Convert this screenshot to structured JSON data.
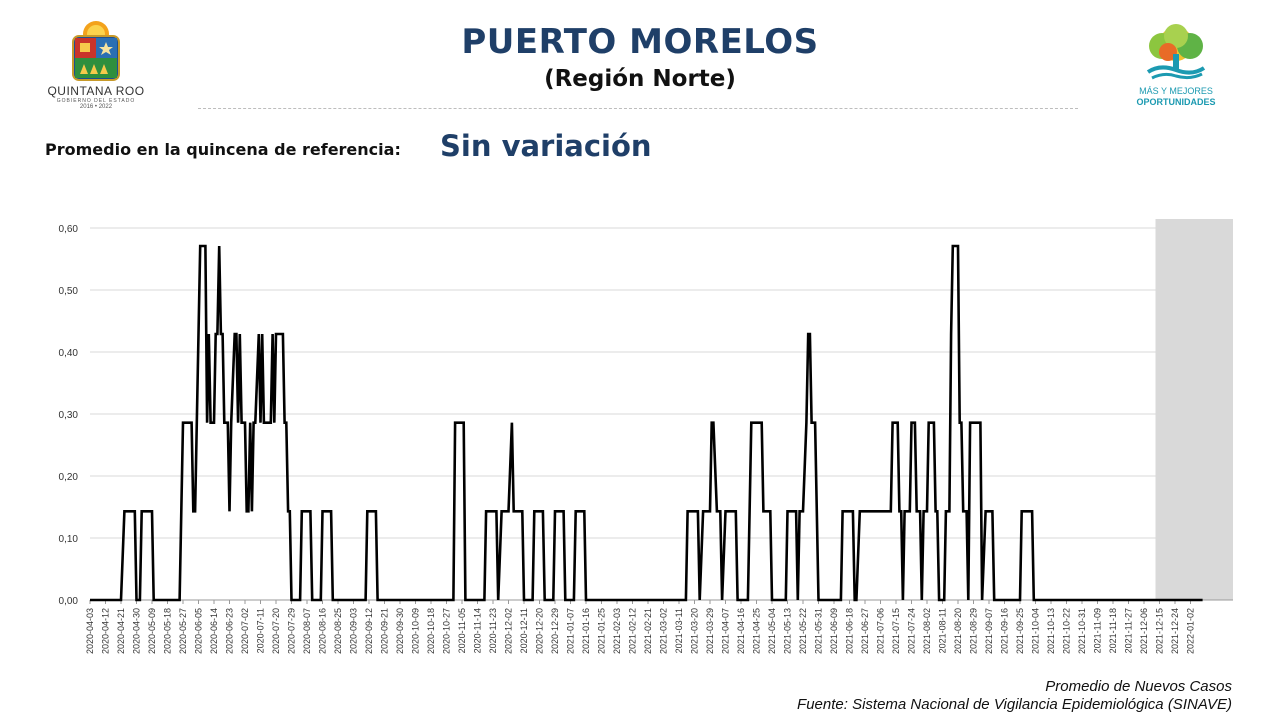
{
  "header": {
    "title": "PUERTO MORELOS",
    "subtitle": "(Región Norte)",
    "left_logo": {
      "name": "QUINTANA ROO",
      "sub": "GOBIERNO DEL ESTADO",
      "years": "2016 • 2022"
    },
    "right_logo": {
      "line1": "MÁS Y MEJORES",
      "line2": "OPORTUNIDADES"
    }
  },
  "reference": {
    "label": "Promedio en la quincena de referencia:",
    "value": "Sin variación"
  },
  "footer": {
    "legend": "Promedio de Nuevos Casos",
    "source": "Fuente: Sistema Nacional de Vigilancia Epidemiológica (SINAVE)"
  },
  "colors": {
    "title": "#1f3f68",
    "line": "#000000",
    "shade": "#d9d9d9",
    "grid": "#d9d9d9"
  },
  "chart_data": {
    "type": "line",
    "ylim": [
      0,
      0.6
    ],
    "yticks": [
      "0,00",
      "0,10",
      "0,20",
      "0,30",
      "0,40",
      "0,50",
      "0,60"
    ],
    "xticks": [
      "2020-04-03",
      "2020-04-12",
      "2020-04-21",
      "2020-04-30",
      "2020-05-09",
      "2020-05-18",
      "2020-05-27",
      "2020-06-05",
      "2020-06-14",
      "2020-06-23",
      "2020-07-02",
      "2020-07-11",
      "2020-07-20",
      "2020-07-29",
      "2020-08-07",
      "2020-08-16",
      "2020-08-25",
      "2020-09-03",
      "2020-09-12",
      "2020-09-21",
      "2020-09-30",
      "2020-10-09",
      "2020-10-18",
      "2020-10-27",
      "2020-11-05",
      "2020-11-14",
      "2020-11-23",
      "2020-12-02",
      "2020-12-11",
      "2020-12-20",
      "2020-12-29",
      "2021-01-07",
      "2021-01-16",
      "2021-01-25",
      "2021-02-03",
      "2021-02-12",
      "2021-02-21",
      "2021-03-02",
      "2021-03-11",
      "2021-03-20",
      "2021-03-29",
      "2021-04-07",
      "2021-04-16",
      "2021-04-25",
      "2021-05-04",
      "2021-05-13",
      "2021-05-22",
      "2021-05-31",
      "2021-06-09",
      "2021-06-18",
      "2021-06-27",
      "2021-07-06",
      "2021-07-15",
      "2021-07-24",
      "2021-08-02",
      "2021-08-11",
      "2021-08-20",
      "2021-08-29",
      "2021-09-07",
      "2021-09-16",
      "2021-09-25",
      "2021-10-04",
      "2021-10-13",
      "2021-10-22",
      "2021-10-31",
      "2021-11-09",
      "2021-11-18",
      "2021-11-27",
      "2021-12-06",
      "2021-12-15",
      "2021-12-24",
      "2022-01-02"
    ],
    "shaded_from": "2021-12-15",
    "points": [
      [
        "2020-04-03",
        0
      ],
      [
        "2020-04-21",
        0
      ],
      [
        "2020-04-23",
        0.143
      ],
      [
        "2020-04-29",
        0.143
      ],
      [
        "2020-04-30",
        0
      ],
      [
        "2020-05-02",
        0
      ],
      [
        "2020-05-03",
        0.143
      ],
      [
        "2020-05-09",
        0.143
      ],
      [
        "2020-05-10",
        0
      ],
      [
        "2020-05-25",
        0
      ],
      [
        "2020-05-27",
        0.286
      ],
      [
        "2020-06-01",
        0.286
      ],
      [
        "2020-06-02",
        0.143
      ],
      [
        "2020-06-03",
        0.143
      ],
      [
        "2020-06-05",
        0.429
      ],
      [
        "2020-06-06",
        0.571
      ],
      [
        "2020-06-09",
        0.571
      ],
      [
        "2020-06-10",
        0.286
      ],
      [
        "2020-06-11",
        0.429
      ],
      [
        "2020-06-12",
        0.286
      ],
      [
        "2020-06-14",
        0.286
      ],
      [
        "2020-06-15",
        0.429
      ],
      [
        "2020-06-16",
        0.429
      ],
      [
        "2020-06-17",
        0.571
      ],
      [
        "2020-06-18",
        0.429
      ],
      [
        "2020-06-19",
        0.429
      ],
      [
        "2020-06-20",
        0.286
      ],
      [
        "2020-06-22",
        0.286
      ],
      [
        "2020-06-23",
        0.143
      ],
      [
        "2020-06-24",
        0.286
      ],
      [
        "2020-06-26",
        0.429
      ],
      [
        "2020-06-27",
        0.429
      ],
      [
        "2020-06-28",
        0.286
      ],
      [
        "2020-06-29",
        0.429
      ],
      [
        "2020-06-30",
        0.286
      ],
      [
        "2020-07-02",
        0.286
      ],
      [
        "2020-07-03",
        0.143
      ],
      [
        "2020-07-04",
        0.143
      ],
      [
        "2020-07-05",
        0.286
      ],
      [
        "2020-07-06",
        0.143
      ],
      [
        "2020-07-07",
        0.286
      ],
      [
        "2020-07-08",
        0.286
      ],
      [
        "2020-07-10",
        0.429
      ],
      [
        "2020-07-11",
        0.286
      ],
      [
        "2020-07-12",
        0.429
      ],
      [
        "2020-07-13",
        0.286
      ],
      [
        "2020-07-17",
        0.286
      ],
      [
        "2020-07-18",
        0.429
      ],
      [
        "2020-07-19",
        0.286
      ],
      [
        "2020-07-20",
        0.429
      ],
      [
        "2020-07-24",
        0.429
      ],
      [
        "2020-07-25",
        0.286
      ],
      [
        "2020-07-26",
        0.286
      ],
      [
        "2020-07-27",
        0.143
      ],
      [
        "2020-07-28",
        0.143
      ],
      [
        "2020-07-29",
        0
      ],
      [
        "2020-08-03",
        0
      ],
      [
        "2020-08-04",
        0.143
      ],
      [
        "2020-08-09",
        0.143
      ],
      [
        "2020-08-10",
        0
      ],
      [
        "2020-08-15",
        0
      ],
      [
        "2020-08-16",
        0.143
      ],
      [
        "2020-08-21",
        0.143
      ],
      [
        "2020-08-22",
        0
      ],
      [
        "2020-09-10",
        0
      ],
      [
        "2020-09-11",
        0.143
      ],
      [
        "2020-09-16",
        0.143
      ],
      [
        "2020-09-17",
        0
      ],
      [
        "2020-10-31",
        0
      ],
      [
        "2020-11-01",
        0.286
      ],
      [
        "2020-11-06",
        0.286
      ],
      [
        "2020-11-07",
        0
      ],
      [
        "2020-11-18",
        0
      ],
      [
        "2020-11-19",
        0.143
      ],
      [
        "2020-11-25",
        0.143
      ],
      [
        "2020-11-26",
        0
      ],
      [
        "2020-11-28",
        0.143
      ],
      [
        "2020-12-02",
        0.143
      ],
      [
        "2020-12-04",
        0.286
      ],
      [
        "2020-12-05",
        0.143
      ],
      [
        "2020-12-10",
        0.143
      ],
      [
        "2020-12-11",
        0
      ],
      [
        "2020-12-16",
        0
      ],
      [
        "2020-12-17",
        0.143
      ],
      [
        "2020-12-22",
        0.143
      ],
      [
        "2020-12-23",
        0
      ],
      [
        "2020-12-28",
        0
      ],
      [
        "2020-12-29",
        0.143
      ],
      [
        "2021-01-03",
        0.143
      ],
      [
        "2021-01-04",
        0
      ],
      [
        "2021-01-09",
        0
      ],
      [
        "2021-01-10",
        0.143
      ],
      [
        "2021-01-15",
        0.143
      ],
      [
        "2021-01-16",
        0
      ],
      [
        "2021-03-15",
        0
      ],
      [
        "2021-03-16",
        0.143
      ],
      [
        "2021-03-22",
        0.143
      ],
      [
        "2021-03-23",
        0
      ],
      [
        "2021-03-25",
        0.143
      ],
      [
        "2021-03-29",
        0.143
      ],
      [
        "2021-03-30",
        0.286
      ],
      [
        "2021-03-31",
        0.286
      ],
      [
        "2021-04-02",
        0.143
      ],
      [
        "2021-04-04",
        0.143
      ],
      [
        "2021-04-05",
        0
      ],
      [
        "2021-04-07",
        0.143
      ],
      [
        "2021-04-13",
        0.143
      ],
      [
        "2021-04-14",
        0
      ],
      [
        "2021-04-20",
        0
      ],
      [
        "2021-04-21",
        0.143
      ],
      [
        "2021-04-22",
        0.286
      ],
      [
        "2021-04-28",
        0.286
      ],
      [
        "2021-04-29",
        0.143
      ],
      [
        "2021-05-03",
        0.143
      ],
      [
        "2021-05-04",
        0
      ],
      [
        "2021-05-12",
        0
      ],
      [
        "2021-05-13",
        0.143
      ],
      [
        "2021-05-18",
        0.143
      ],
      [
        "2021-05-19",
        0
      ],
      [
        "2021-05-20",
        0.143
      ],
      [
        "2021-05-22",
        0.143
      ],
      [
        "2021-05-24",
        0.286
      ],
      [
        "2021-05-25",
        0.429
      ],
      [
        "2021-05-26",
        0.429
      ],
      [
        "2021-05-27",
        0.286
      ],
      [
        "2021-05-29",
        0.286
      ],
      [
        "2021-05-30",
        0.143
      ],
      [
        "2021-05-31",
        0
      ],
      [
        "2021-06-13",
        0
      ],
      [
        "2021-06-14",
        0.143
      ],
      [
        "2021-06-20",
        0.143
      ],
      [
        "2021-06-21",
        0
      ],
      [
        "2021-06-22",
        0
      ],
      [
        "2021-06-24",
        0.143
      ],
      [
        "2021-07-12",
        0.143
      ],
      [
        "2021-07-13",
        0.286
      ],
      [
        "2021-07-16",
        0.286
      ],
      [
        "2021-07-17",
        0.143
      ],
      [
        "2021-07-18",
        0.143
      ],
      [
        "2021-07-19",
        0
      ],
      [
        "2021-07-20",
        0.143
      ],
      [
        "2021-07-23",
        0.143
      ],
      [
        "2021-07-24",
        0.286
      ],
      [
        "2021-07-26",
        0.286
      ],
      [
        "2021-07-27",
        0.143
      ],
      [
        "2021-07-29",
        0.143
      ],
      [
        "2021-07-30",
        0
      ],
      [
        "2021-07-31",
        0.143
      ],
      [
        "2021-08-02",
        0.143
      ],
      [
        "2021-08-03",
        0.286
      ],
      [
        "2021-08-06",
        0.286
      ],
      [
        "2021-08-07",
        0.143
      ],
      [
        "2021-08-08",
        0.143
      ],
      [
        "2021-08-09",
        0
      ],
      [
        "2021-08-12",
        0
      ],
      [
        "2021-08-13",
        0.143
      ],
      [
        "2021-08-15",
        0.143
      ],
      [
        "2021-08-16",
        0.429
      ],
      [
        "2021-08-17",
        0.571
      ],
      [
        "2021-08-20",
        0.571
      ],
      [
        "2021-08-21",
        0.286
      ],
      [
        "2021-08-22",
        0.286
      ],
      [
        "2021-08-23",
        0.143
      ],
      [
        "2021-08-25",
        0.143
      ],
      [
        "2021-08-26",
        0
      ],
      [
        "2021-08-27",
        0.286
      ],
      [
        "2021-09-02",
        0.286
      ],
      [
        "2021-09-03",
        0
      ],
      [
        "2021-09-05",
        0.143
      ],
      [
        "2021-09-09",
        0.143
      ],
      [
        "2021-09-10",
        0
      ],
      [
        "2021-09-25",
        0
      ],
      [
        "2021-09-26",
        0.143
      ],
      [
        "2021-10-02",
        0.143
      ],
      [
        "2021-10-03",
        0
      ],
      [
        "2022-01-09",
        0
      ]
    ]
  }
}
